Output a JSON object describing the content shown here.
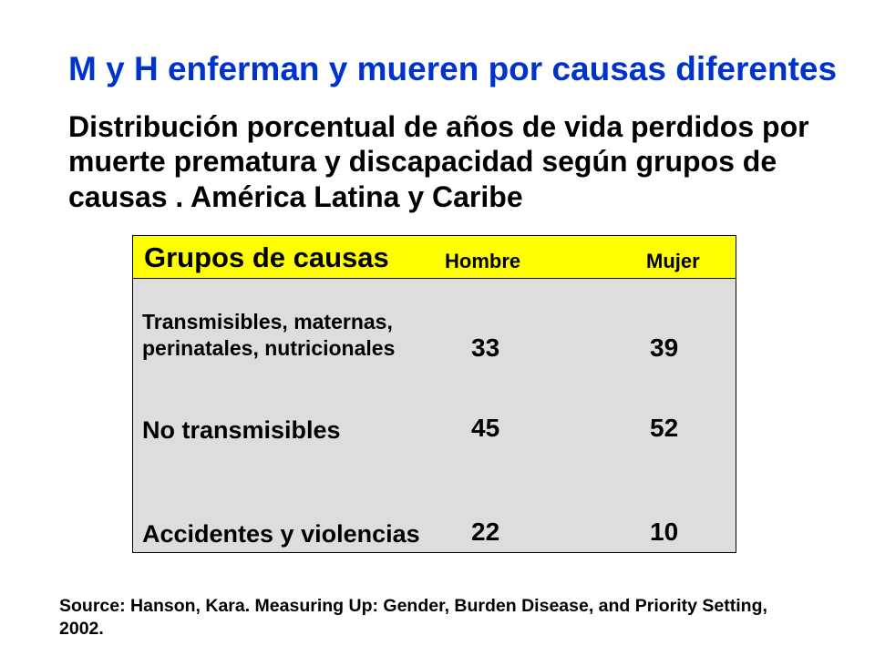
{
  "slide": {
    "title": "M y H enferman y mueren por causas diferentes",
    "subtitle_lines": [
      "Distribución porcentual de años de vida perdidos por",
      "muerte prematura y discapacidad según grupos de",
      "causas . América Latina y Caribe"
    ],
    "source_lines": [
      "Source: Hanson, Kara. Measuring Up: Gender, Burden Disease, and Priority Setting,",
      "2002."
    ]
  },
  "table": {
    "headers": [
      "Grupos de causas",
      "Hombre",
      "Mujer"
    ],
    "rows": [
      {
        "cause_lines": [
          "Transmisibles, maternas,",
          "perinatales, nutricionales"
        ],
        "hombre": "33",
        "mujer": "39"
      },
      {
        "cause_lines": [
          "No transmisibles"
        ],
        "hombre": "45",
        "mujer": "52"
      },
      {
        "cause_lines": [
          "Accidentes y violencias"
        ],
        "hombre": "22",
        "mujer": "10"
      }
    ]
  },
  "colors": {
    "title": "#0033CC",
    "header_bg": "#FFFF00",
    "body_bg": "#DDDDDD"
  }
}
